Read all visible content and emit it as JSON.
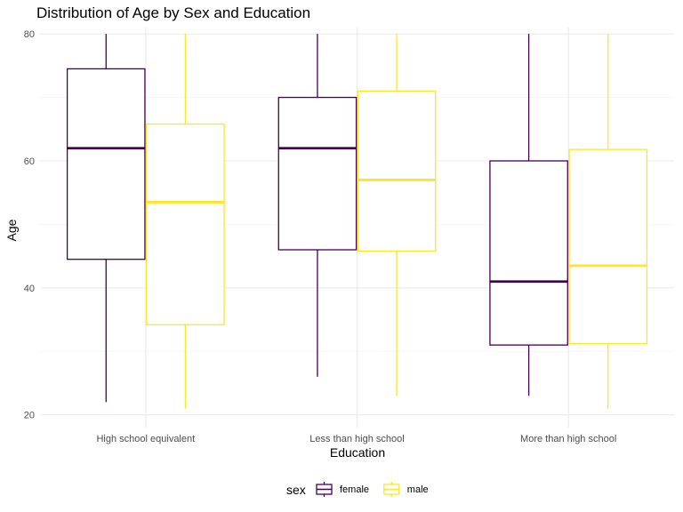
{
  "chart_data": {
    "type": "boxplot",
    "title": "Distribution of Age by Sex and Education",
    "xlabel": "Education",
    "ylabel": "Age",
    "ylim": [
      18,
      81
    ],
    "yticks": [
      20,
      40,
      60,
      80
    ],
    "grid": true,
    "legend_position": "bottom",
    "legend_title": "sex",
    "categories": [
      "High school equivalent",
      "Less than high school",
      "More than high school"
    ],
    "series": [
      {
        "name": "female",
        "color": "#440154",
        "boxes": [
          {
            "min": 22,
            "q1": 44.5,
            "median": 62,
            "q3": 74.5,
            "max": 80
          },
          {
            "min": 26,
            "q1": 46,
            "median": 62,
            "q3": 70,
            "max": 80
          },
          {
            "min": 23,
            "q1": 31,
            "median": 41,
            "q3": 60,
            "max": 80
          }
        ]
      },
      {
        "name": "male",
        "color": "#FDE725",
        "boxes": [
          {
            "min": 21,
            "q1": 34.2,
            "median": 53.5,
            "q3": 65.8,
            "max": 80
          },
          {
            "min": 23,
            "q1": 45.8,
            "median": 57,
            "q3": 71,
            "max": 80
          },
          {
            "min": 21,
            "q1": 31.2,
            "median": 43.5,
            "q3": 61.8,
            "max": 80
          }
        ]
      }
    ]
  }
}
